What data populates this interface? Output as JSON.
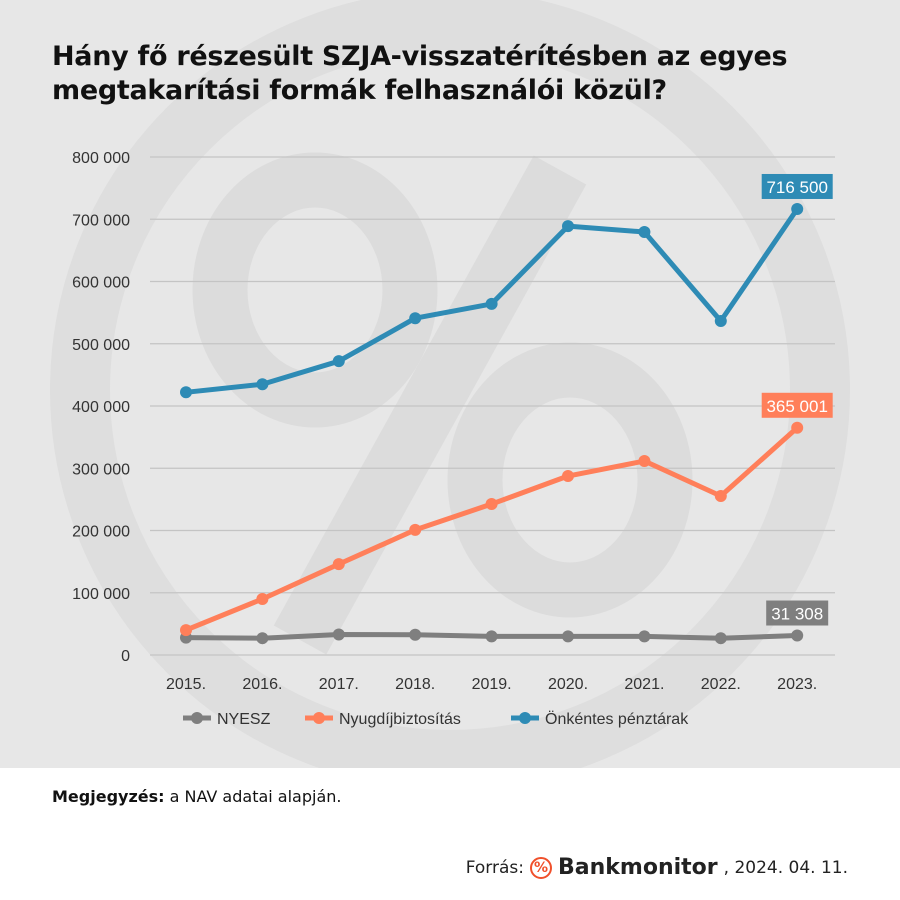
{
  "chart_data": {
    "type": "line",
    "title": "Hány fő részesült SZJA-visszatérítésben az egyes megtakarítási formák felhasználói közül?",
    "categories": [
      "2015.",
      "2016.",
      "2017.",
      "2018.",
      "2019.",
      "2020.",
      "2021.",
      "2022.",
      "2023."
    ],
    "ylim": [
      0,
      800000
    ],
    "yticks": [
      0,
      100000,
      200000,
      300000,
      400000,
      500000,
      600000,
      700000,
      800000
    ],
    "ytick_labels": [
      "0",
      "100 000",
      "200 000",
      "300 000",
      "400 000",
      "500 000",
      "600 000",
      "700 000",
      "800 000"
    ],
    "grid": true,
    "legend_position": "bottom",
    "series": [
      {
        "name": "NYESZ",
        "color": "#7f7f7f",
        "values": [
          28000,
          27000,
          33000,
          32500,
          30000,
          30000,
          30000,
          27000,
          31308
        ],
        "end_label": "31 308"
      },
      {
        "name": "Nyugdíjbiztosítás",
        "color": "#ff7f5a",
        "values": [
          40000,
          90000,
          146000,
          201000,
          242500,
          287500,
          311600,
          255400,
          365001
        ],
        "end_label": "365 001"
      },
      {
        "name": "Önkéntes pénztárak",
        "color": "#2e8bb5",
        "values": [
          422000,
          435000,
          472000,
          541000,
          564000,
          689000,
          679500,
          536500,
          716500
        ],
        "end_label": "716 500"
      }
    ]
  },
  "note": {
    "label": "Megjegyzés:",
    "text": " a NAV adatai alapján."
  },
  "source": {
    "label": "Forrás:",
    "brand": "Bankmonitor",
    "date": ", 2024. 04. 11.",
    "logo_text": "%"
  }
}
